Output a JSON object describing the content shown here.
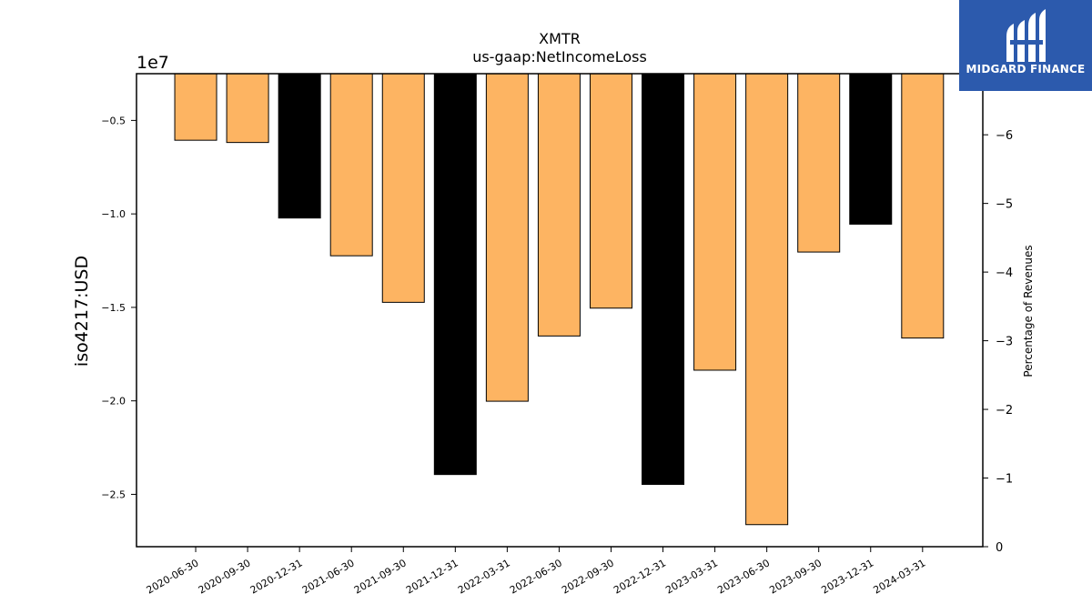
{
  "chart_data": {
    "type": "bar",
    "title": "XMTR",
    "subtitle": "us-gaap:NetIncomeLoss",
    "ylabel": "iso4217:USD",
    "y_offset_label": "1e7",
    "y2label": "Percentage of Revenues",
    "categories": [
      "2020-06-30",
      "2020-09-30",
      "2020-12-31",
      "2021-06-30",
      "2021-09-30",
      "2021-12-31",
      "2022-03-31",
      "2022-06-30",
      "2022-09-30",
      "2022-12-31",
      "2023-03-31",
      "2023-06-30",
      "2023-09-30",
      "2023-12-31",
      "2024-03-31"
    ],
    "values": [
      -6060000,
      -6180000,
      -10220000,
      -12240000,
      -14730000,
      -23940000,
      -20020000,
      -16530000,
      -15040000,
      -24470000,
      -18360000,
      -26620000,
      -12040000,
      -10550000,
      -16640000
    ],
    "bar_kinds": [
      "quarter",
      "quarter",
      "annual",
      "quarter",
      "quarter",
      "annual",
      "quarter",
      "quarter",
      "quarter",
      "annual",
      "quarter",
      "quarter",
      "quarter",
      "annual",
      "quarter"
    ],
    "colors": {
      "quarter": "#fdb462",
      "annual": "#000000"
    },
    "ylim": [
      -27800000,
      -2500000
    ],
    "yticks": [
      -5000000,
      -10000000,
      -15000000,
      -20000000,
      -25000000
    ],
    "ytick_labels": [
      "−0.5",
      "−1.0",
      "−1.5",
      "−2.0",
      "−2.5"
    ],
    "y2lim": [
      0,
      6.89
    ],
    "y2ticks": [
      0,
      1,
      2,
      3,
      4,
      5,
      6
    ],
    "y2tick_labels": [
      "0",
      "−1",
      "−2",
      "−3",
      "−4",
      "−5",
      "−6"
    ],
    "grid": false,
    "legend": "none"
  },
  "logo": {
    "text": "MIDGARD FINANCE",
    "icon": "midgard-logo-icon"
  }
}
